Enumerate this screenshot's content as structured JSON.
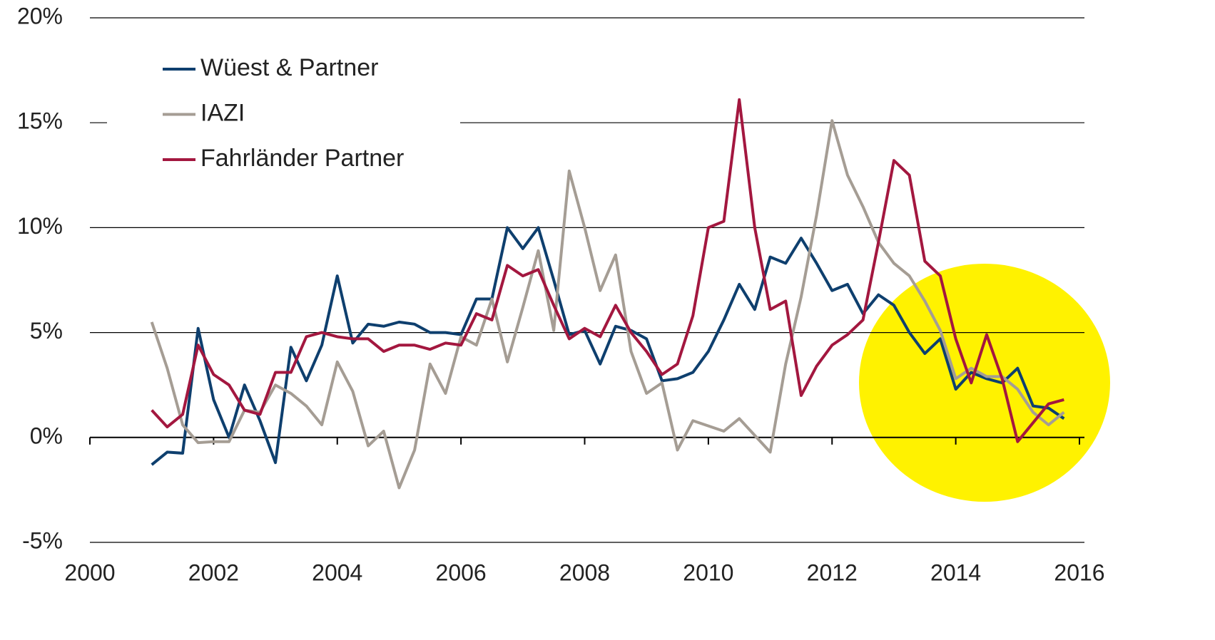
{
  "chart_data": {
    "type": "line",
    "x": [
      2001,
      2001.25,
      2001.5,
      2001.75,
      2002,
      2002.25,
      2002.5,
      2002.75,
      2003,
      2003.25,
      2003.5,
      2003.75,
      2004,
      2004.25,
      2004.5,
      2004.75,
      2005,
      2005.25,
      2005.5,
      2005.75,
      2006,
      2006.25,
      2006.5,
      2006.75,
      2007,
      2007.25,
      2007.5,
      2007.75,
      2008,
      2008.25,
      2008.5,
      2008.75,
      2009,
      2009.25,
      2009.5,
      2009.75,
      2010,
      2010.25,
      2010.5,
      2010.75,
      2011,
      2011.25,
      2011.5,
      2011.75,
      2012,
      2012.25,
      2012.5,
      2012.75,
      2013,
      2013.25,
      2013.5,
      2013.75,
      2014,
      2014.25,
      2014.5,
      2014.75,
      2015,
      2015.25,
      2015.5,
      2015.75
    ],
    "series": [
      {
        "name": "Wüest & Partner",
        "color": "#0e3f6e",
        "values": [
          -1.3,
          -0.7,
          -0.75,
          5.2,
          1.8,
          0,
          2.5,
          0.8,
          -1.2,
          4.3,
          2.7,
          4.4,
          7.7,
          4.5,
          5.4,
          5.3,
          5.5,
          5.4,
          5.0,
          5.0,
          4.9,
          6.6,
          6.6,
          10.0,
          9.0,
          10.0,
          7.5,
          4.9,
          5.1,
          3.5,
          5.3,
          5.1,
          4.7,
          2.7,
          2.8,
          3.1,
          4.1,
          5.6,
          7.3,
          6.1,
          8.6,
          8.3,
          9.5,
          8.3,
          7.0,
          7.3,
          5.9,
          6.8,
          6.3,
          5.0,
          4.0,
          4.7,
          2.3,
          3.1,
          2.8,
          2.6,
          3.3,
          1.5,
          1.4,
          0.9
        ]
      },
      {
        "name": "IAZI",
        "color": "#a59d94",
        "values": [
          5.5,
          3.3,
          0.6,
          -0.25,
          -0.2,
          -0.2,
          1.3,
          1.2,
          2.5,
          2.1,
          1.5,
          0.6,
          3.6,
          2.2,
          -0.4,
          0.3,
          -2.4,
          -0.6,
          3.5,
          2.1,
          4.8,
          4.4,
          6.6,
          3.6,
          6.2,
          8.9,
          5.1,
          12.7,
          10.0,
          7.0,
          8.7,
          4.1,
          2.1,
          2.6,
          -0.6,
          0.8,
          0.55,
          0.3,
          0.9,
          0.1,
          -0.7,
          3.5,
          6.7,
          10.6,
          15.1,
          12.5,
          11.0,
          9.3,
          8.3,
          7.7,
          6.5,
          5.1,
          2.8,
          3.3,
          2.9,
          2.9,
          2.3,
          1.2,
          0.6,
          1.2
        ]
      },
      {
        "name": "Fahrländer Partner",
        "color": "#a3173f",
        "values": [
          1.3,
          0.5,
          1.1,
          4.4,
          3.0,
          2.5,
          1.3,
          1.1,
          3.1,
          3.1,
          4.8,
          5.0,
          4.8,
          4.7,
          4.7,
          4.1,
          4.4,
          4.4,
          4.2,
          4.5,
          4.4,
          5.9,
          5.6,
          8.2,
          7.7,
          8.0,
          6.3,
          4.7,
          5.2,
          4.8,
          6.3,
          5.0,
          4.1,
          3.0,
          3.5,
          5.8,
          10.0,
          10.3,
          16.1,
          10.0,
          6.1,
          6.5,
          2.0,
          3.4,
          4.4,
          4.9,
          5.6,
          9.3,
          13.2,
          12.5,
          8.4,
          7.7,
          4.7,
          2.6,
          4.9,
          2.8,
          -0.2,
          0.7,
          1.6,
          1.8
        ]
      }
    ],
    "xlim": [
      2000,
      2016
    ],
    "xticks": [
      2000,
      2002,
      2004,
      2006,
      2008,
      2010,
      2012,
      2014,
      2016
    ],
    "ylim": [
      -5,
      20
    ],
    "yticks": [
      {
        "value": -5,
        "label": "-5%"
      },
      {
        "value": 0,
        "label": "0%"
      },
      {
        "value": 5,
        "label": "5%"
      },
      {
        "value": 10,
        "label": "10%"
      },
      {
        "value": 15,
        "label": "15%"
      },
      {
        "value": 20,
        "label": "20%"
      }
    ],
    "grid": true,
    "legend": "upper left"
  }
}
